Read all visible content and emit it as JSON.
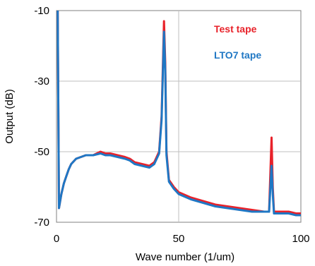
{
  "chart_data": {
    "type": "line",
    "xlabel": "Wave number (1/um)",
    "ylabel": "Output (dB)",
    "xlim": [
      0,
      100
    ],
    "ylim": [
      -70,
      -10
    ],
    "x_ticks": [
      "0",
      "50",
      "100"
    ],
    "y_ticks": [
      "-10",
      "-30",
      "-50",
      "-70"
    ],
    "grid": "major",
    "legend_position": "top-right",
    "colors": {
      "test": "#e8222a",
      "lto7": "#1f77c4"
    },
    "series": [
      {
        "name": "Test tape",
        "x": [
          0.5,
          1,
          1.5,
          2,
          3,
          4,
          5,
          6,
          8,
          10,
          12,
          15,
          18,
          20,
          22,
          25,
          28,
          30,
          32,
          35,
          38,
          40,
          42,
          43,
          44,
          44.5,
          45,
          46,
          48,
          50,
          55,
          60,
          65,
          70,
          75,
          80,
          85,
          87,
          88,
          88.5,
          89,
          90,
          92,
          95,
          98,
          100
        ],
        "y": [
          -10,
          -66,
          -64,
          -62,
          -59,
          -57,
          -55,
          -53.5,
          -52,
          -51.5,
          -51,
          -51,
          -50,
          -50.5,
          -50.5,
          -51,
          -51.5,
          -52,
          -53,
          -53.5,
          -54,
          -53,
          -50,
          -40,
          -13,
          -25,
          -50,
          -58,
          -60,
          -61.5,
          -63,
          -64,
          -65,
          -65.5,
          -66,
          -66.5,
          -67,
          -67,
          -46,
          -60,
          -67,
          -67,
          -67,
          -67,
          -67.5,
          -67.5
        ]
      },
      {
        "name": "LTO7 tape",
        "x": [
          0.5,
          1,
          1.5,
          2,
          3,
          4,
          5,
          6,
          8,
          10,
          12,
          15,
          18,
          20,
          22,
          25,
          28,
          30,
          32,
          35,
          38,
          40,
          42,
          43,
          44,
          44.5,
          45,
          46,
          48,
          50,
          55,
          60,
          65,
          70,
          75,
          80,
          85,
          87,
          88,
          88.5,
          89,
          90,
          92,
          95,
          98,
          100
        ],
        "y": [
          -10,
          -66,
          -64,
          -62,
          -59,
          -57,
          -55,
          -53.5,
          -52,
          -51.5,
          -51,
          -51,
          -50.5,
          -51,
          -51,
          -51.5,
          -52,
          -52.5,
          -53.5,
          -54,
          -54.5,
          -53.5,
          -50.5,
          -41,
          -16,
          -27,
          -51,
          -58.5,
          -60.5,
          -62,
          -63.5,
          -64.5,
          -65.5,
          -66,
          -66.5,
          -67,
          -67,
          -67,
          -54,
          -62,
          -67.5,
          -67.5,
          -67.5,
          -67.5,
          -68,
          -68
        ]
      }
    ]
  }
}
